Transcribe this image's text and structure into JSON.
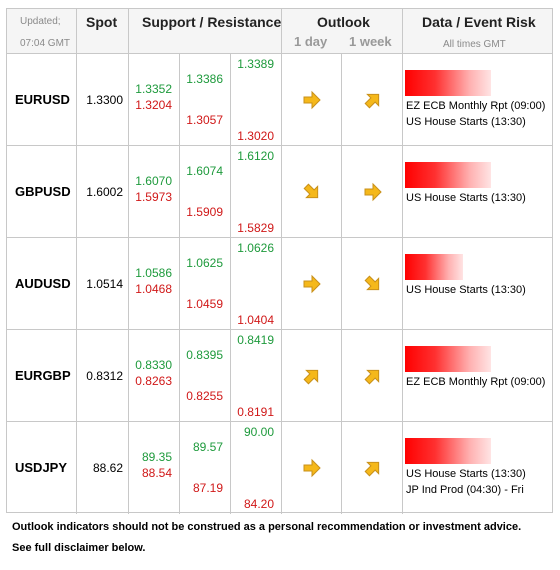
{
  "header": {
    "updated_label": "Updated;",
    "updated_time": "07:04 GMT",
    "spot": "Spot",
    "sr": "Support / Resistance",
    "outlook": "Outlook",
    "outlook_1d": "1 day",
    "outlook_1w": "1 week",
    "events": "Data / Event Risk",
    "events_sub": "All times GMT"
  },
  "colors": {
    "support": "#d01818",
    "resistance": "#1e9a3c",
    "arrow": "#f5b81a"
  },
  "rows": [
    {
      "pair": "EURUSD",
      "spot": "1.3300",
      "r1": "1.3352",
      "s1": "1.3204",
      "r2": "1.3386",
      "s2": "1.3057",
      "r3": "1.3389",
      "s3": "1.3020",
      "outlook_1d": "right",
      "outlook_1w": "up-right",
      "event_bar": 0.72,
      "events": [
        "EZ ECB Monthly Rpt (09:00)",
        "US House Starts (13:30)"
      ]
    },
    {
      "pair": "GBPUSD",
      "spot": "1.6002",
      "r1": "1.6070",
      "s1": "1.5973",
      "r2": "1.6074",
      "s2": "1.5909",
      "r3": "1.6120",
      "s3": "1.5829",
      "outlook_1d": "down-right",
      "outlook_1w": "right",
      "event_bar": 0.72,
      "events": [
        "US House Starts (13:30)"
      ]
    },
    {
      "pair": "AUDUSD",
      "spot": "1.0514",
      "r1": "1.0586",
      "s1": "1.0468",
      "r2": "1.0625",
      "s2": "1.0459",
      "r3": "1.0626",
      "s3": "1.0404",
      "outlook_1d": "right",
      "outlook_1w": "down-right",
      "event_bar": 0.48,
      "events": [
        "US House Starts (13:30)"
      ]
    },
    {
      "pair": "EURGBP",
      "spot": "0.8312",
      "r1": "0.8330",
      "s1": "0.8263",
      "r2": "0.8395",
      "s2": "0.8255",
      "r3": "0.8419",
      "s3": "0.8191",
      "outlook_1d": "up-right",
      "outlook_1w": "up-right",
      "event_bar": 0.72,
      "events": [
        "EZ ECB Monthly Rpt (09:00)"
      ]
    },
    {
      "pair": "USDJPY",
      "spot": "88.62",
      "r1": "89.35",
      "s1": "88.54",
      "r2": "89.57",
      "s2": "87.19",
      "r3": "90.00",
      "s3": "84.20",
      "outlook_1d": "right",
      "outlook_1w": "up-right",
      "event_bar": 0.72,
      "events": [
        "US House Starts (13:30)",
        "JP Ind Prod (04:30) - Fri"
      ]
    }
  ],
  "footer": {
    "line1": "Outlook indicators should not be construed as a personal recommendation or investment advice.",
    "line2": "See full disclaimer below."
  }
}
